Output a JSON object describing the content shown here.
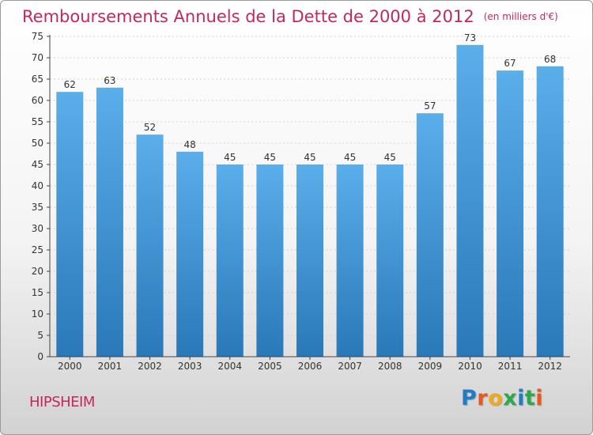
{
  "header": {
    "title": "Remboursements Annuels de la Dette de 2000 à 2012",
    "subtitle": "(en milliers d'€)"
  },
  "footer": {
    "commune": "HIPSHEIM",
    "logo": "Proxiti"
  },
  "colors": {
    "title": "#c4285a",
    "bar_top": "#5aaeea",
    "bar_bottom": "#2a78b8",
    "logo_letters": [
      "#1f7dc4",
      "#e8581c",
      "#f0a81c",
      "#2da84a",
      "#1f7dc4",
      "#2da84a",
      "#e8581c"
    ]
  },
  "chart_data": {
    "type": "bar",
    "categories": [
      "2000",
      "2001",
      "2002",
      "2003",
      "2004",
      "2005",
      "2006",
      "2007",
      "2008",
      "2009",
      "2010",
      "2011",
      "2012"
    ],
    "values": [
      62,
      63,
      52,
      48,
      45,
      45,
      45,
      45,
      45,
      57,
      73,
      67,
      68
    ],
    "title": "Remboursements Annuels de la Dette de 2000 à 2012",
    "xlabel": "",
    "ylabel": "",
    "ylim": [
      0,
      75
    ],
    "yticks": [
      0,
      5,
      10,
      15,
      20,
      25,
      30,
      35,
      40,
      45,
      50,
      55,
      60,
      65,
      70,
      75
    ],
    "grid": true,
    "legend": "none"
  }
}
